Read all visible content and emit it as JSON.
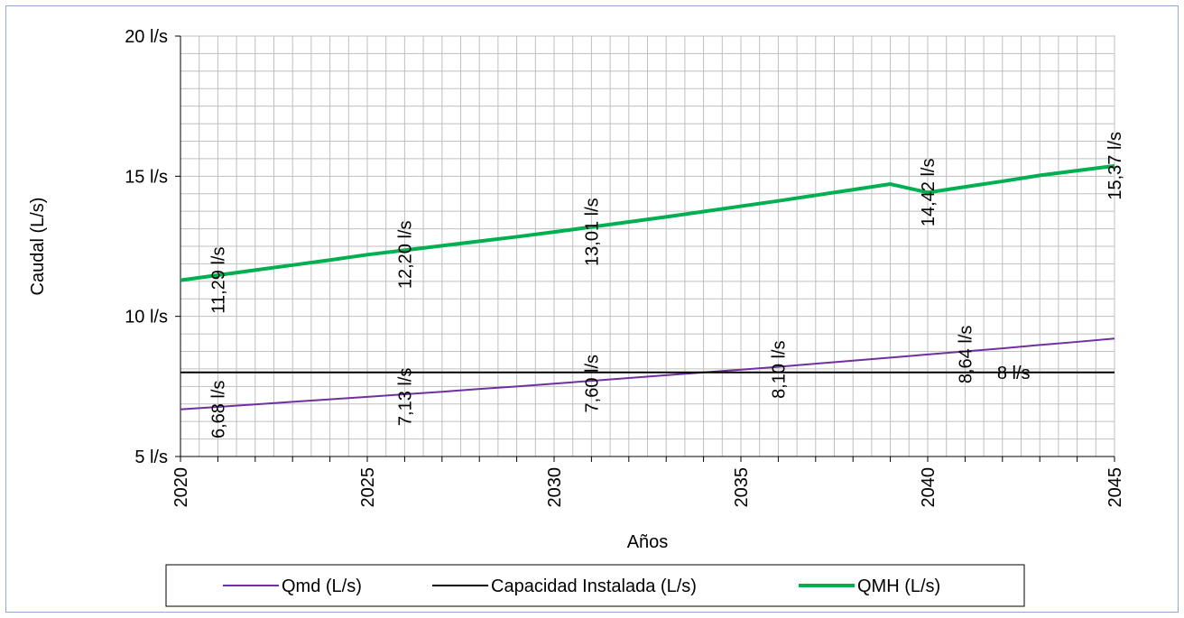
{
  "chart_data": {
    "type": "line",
    "title": "",
    "xlabel": "Años",
    "ylabel": "Caudal (L/s)",
    "xlim": [
      2020,
      2045
    ],
    "ylim": [
      5,
      20
    ],
    "x_ticks": [
      2020,
      2025,
      2030,
      2035,
      2040,
      2045
    ],
    "x_tick_labels": [
      "2020",
      "2025",
      "2030",
      "2035",
      "2040",
      "2045"
    ],
    "y_ticks": [
      5,
      10,
      15,
      20
    ],
    "y_tick_labels": [
      "5 l/s",
      "10 l/s",
      "15 l/s",
      "20 l/s"
    ],
    "grid": true,
    "legend_position": "bottom",
    "series": [
      {
        "name": "Qmd (L/s)",
        "color": "#7030a0",
        "x": [
          2020,
          2021,
          2022,
          2023,
          2024,
          2025,
          2026,
          2027,
          2028,
          2029,
          2030,
          2031,
          2032,
          2033,
          2034,
          2035,
          2036,
          2037,
          2038,
          2039,
          2040,
          2041,
          2042,
          2043,
          2044,
          2045
        ],
        "values": [
          6.68,
          6.77,
          6.86,
          6.95,
          7.04,
          7.13,
          7.22,
          7.31,
          7.41,
          7.5,
          7.6,
          7.7,
          7.8,
          7.9,
          8.0,
          8.1,
          8.2,
          8.31,
          8.42,
          8.53,
          8.64,
          8.75,
          8.86,
          8.98,
          9.09,
          9.21
        ],
        "labels": [
          {
            "x": 2021,
            "y": 6.68,
            "text": "6,68 l/s"
          },
          {
            "x": 2026,
            "y": 7.13,
            "text": "7,13 l/s"
          },
          {
            "x": 2031,
            "y": 7.6,
            "text": "7,60 l/s"
          },
          {
            "x": 2036,
            "y": 8.1,
            "text": "8,10 l/s"
          },
          {
            "x": 2041,
            "y": 8.64,
            "text": "8,64 l/s"
          }
        ]
      },
      {
        "name": "Capacidad Instalada (L/s)",
        "color": "#000000",
        "x": [
          2020,
          2045
        ],
        "values": [
          8,
          8
        ],
        "labels": [
          {
            "x": 2042.3,
            "y": 8,
            "text": "8 l/s"
          }
        ]
      },
      {
        "name": "QMH (L/s)",
        "color": "#00b050",
        "x": [
          2020,
          2021,
          2022,
          2023,
          2024,
          2025,
          2026,
          2027,
          2028,
          2029,
          2030,
          2031,
          2032,
          2033,
          2034,
          2035,
          2036,
          2037,
          2038,
          2039,
          2040,
          2041,
          2042,
          2043,
          2044,
          2045
        ],
        "values": [
          11.29,
          11.47,
          11.65,
          11.83,
          12.01,
          12.2,
          12.36,
          12.52,
          12.68,
          12.84,
          13.01,
          13.19,
          13.37,
          13.55,
          13.74,
          13.93,
          14.12,
          14.32,
          14.52,
          14.72,
          14.42,
          14.62,
          14.82,
          15.03,
          15.2,
          15.37
        ],
        "labels": [
          {
            "x": 2021,
            "y": 11.29,
            "text": "11,29 l/s"
          },
          {
            "x": 2026,
            "y": 12.2,
            "text": "12,20 l/s"
          },
          {
            "x": 2031,
            "y": 13.01,
            "text": "13,01 l/s"
          },
          {
            "x": 2040,
            "y": 14.42,
            "text": "14,42 l/s"
          },
          {
            "x": 2045,
            "y": 15.37,
            "text": "15,37 l/s"
          }
        ]
      }
    ]
  }
}
